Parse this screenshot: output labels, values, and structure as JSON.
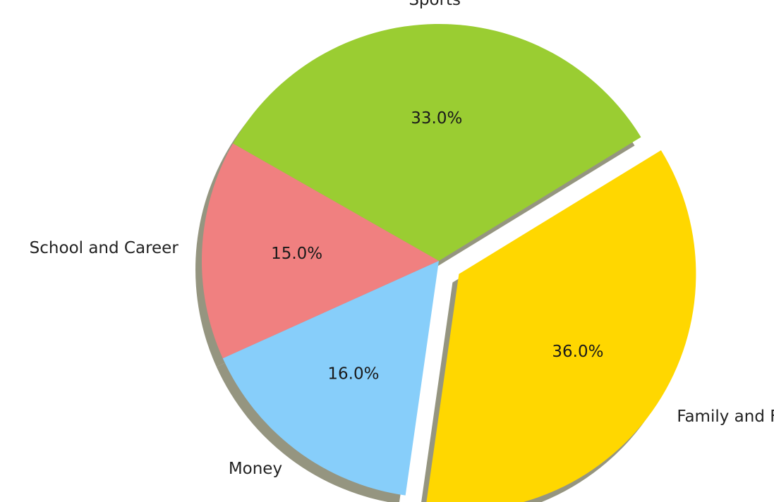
{
  "chart_data": {
    "type": "pie",
    "slices": [
      {
        "label": "Sports",
        "value": 33.0,
        "pct_label": "33.0%",
        "color": "#9ACD32",
        "exploded": false
      },
      {
        "label": "School and Career",
        "value": 15.0,
        "pct_label": "15.0%",
        "color": "#F08080",
        "exploded": false
      },
      {
        "label": "Money",
        "value": 16.0,
        "pct_label": "16.0%",
        "color": "#87CEFA",
        "exploded": false
      },
      {
        "label": "Family and Friends",
        "value": 36.0,
        "pct_label": "36.0%",
        "color": "#FFD700",
        "exploded": true
      }
    ],
    "shadow": true,
    "legend": "none"
  }
}
